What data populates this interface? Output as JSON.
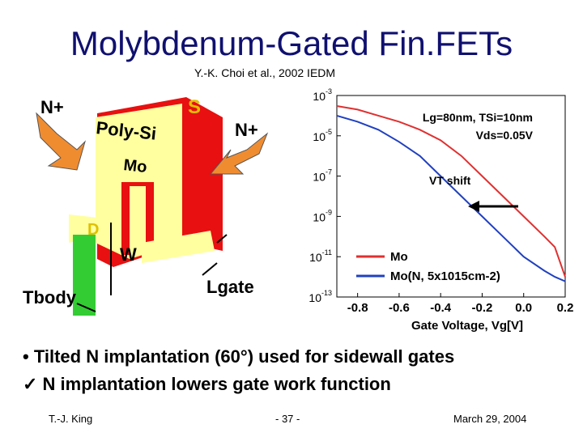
{
  "title": "Molybdenum-Gated Fin.FETs",
  "citation": "Y.-K. Choi et al., 2002 IEDM",
  "diagram": {
    "n_plus_left": "N+",
    "source": "S",
    "poly_si": "Poly-Si",
    "mo": "Mo",
    "n_plus_right": "N+",
    "drain": "D",
    "width": "W",
    "t_body": "Tbody",
    "l_gate": "Lgate"
  },
  "chart_data": {
    "type": "line",
    "x_label": "Gate Voltage, Vg[V]",
    "ylog": true,
    "xlim": [
      -0.9,
      0.2
    ],
    "ylim": [
      1e-13,
      0.001
    ],
    "xticks": [
      -0.8,
      -0.6,
      -0.4,
      -0.2,
      {
        "value": 0,
        "label": "0.0"
      },
      0.2
    ],
    "yticks": [
      {
        "value": 0.001,
        "label": "10-3"
      },
      {
        "value": 1e-05,
        "label": "10-5"
      },
      {
        "value": 1e-07,
        "label": "10-7"
      },
      {
        "value": 1e-09,
        "label": "10-9"
      },
      {
        "value": 1e-11,
        "label": "10-11"
      },
      {
        "value": 1e-13,
        "label": "10-13"
      }
    ],
    "x": [
      -0.9,
      -0.8,
      -0.7,
      -0.6,
      -0.5,
      -0.4,
      -0.3,
      -0.2,
      -0.1,
      0,
      0.1,
      0.15,
      0.2
    ],
    "series": [
      {
        "name": "Mo",
        "color": "#e03030",
        "values": [
          0.0003,
          0.0002,
          0.0001,
          5e-05,
          2e-05,
          6e-06,
          1e-06,
          1e-07,
          1e-08,
          1e-09,
          1e-10,
          3e-11,
          1e-12
        ]
      },
      {
        "name": "Mo(N, 5x1015cm-2)",
        "color": "#2040c0",
        "values": [
          0.0001,
          5e-05,
          2e-05,
          5e-06,
          1e-06,
          1e-07,
          1e-08,
          1e-09,
          1e-10,
          1e-11,
          2e-12,
          1e-12,
          6e-13
        ]
      }
    ],
    "annotations": {
      "params": "Lg=80nm, TSi=10nm",
      "vds": "Vds=0.05V",
      "shift": "VT shift"
    }
  },
  "bullets": [
    "Tilted N implantation (60°) used for sidewall gates",
    "N implantation lowers gate work function"
  ],
  "footer": {
    "author": "T.-J. King",
    "page": "- 37 -",
    "date": "March 29, 2004"
  }
}
